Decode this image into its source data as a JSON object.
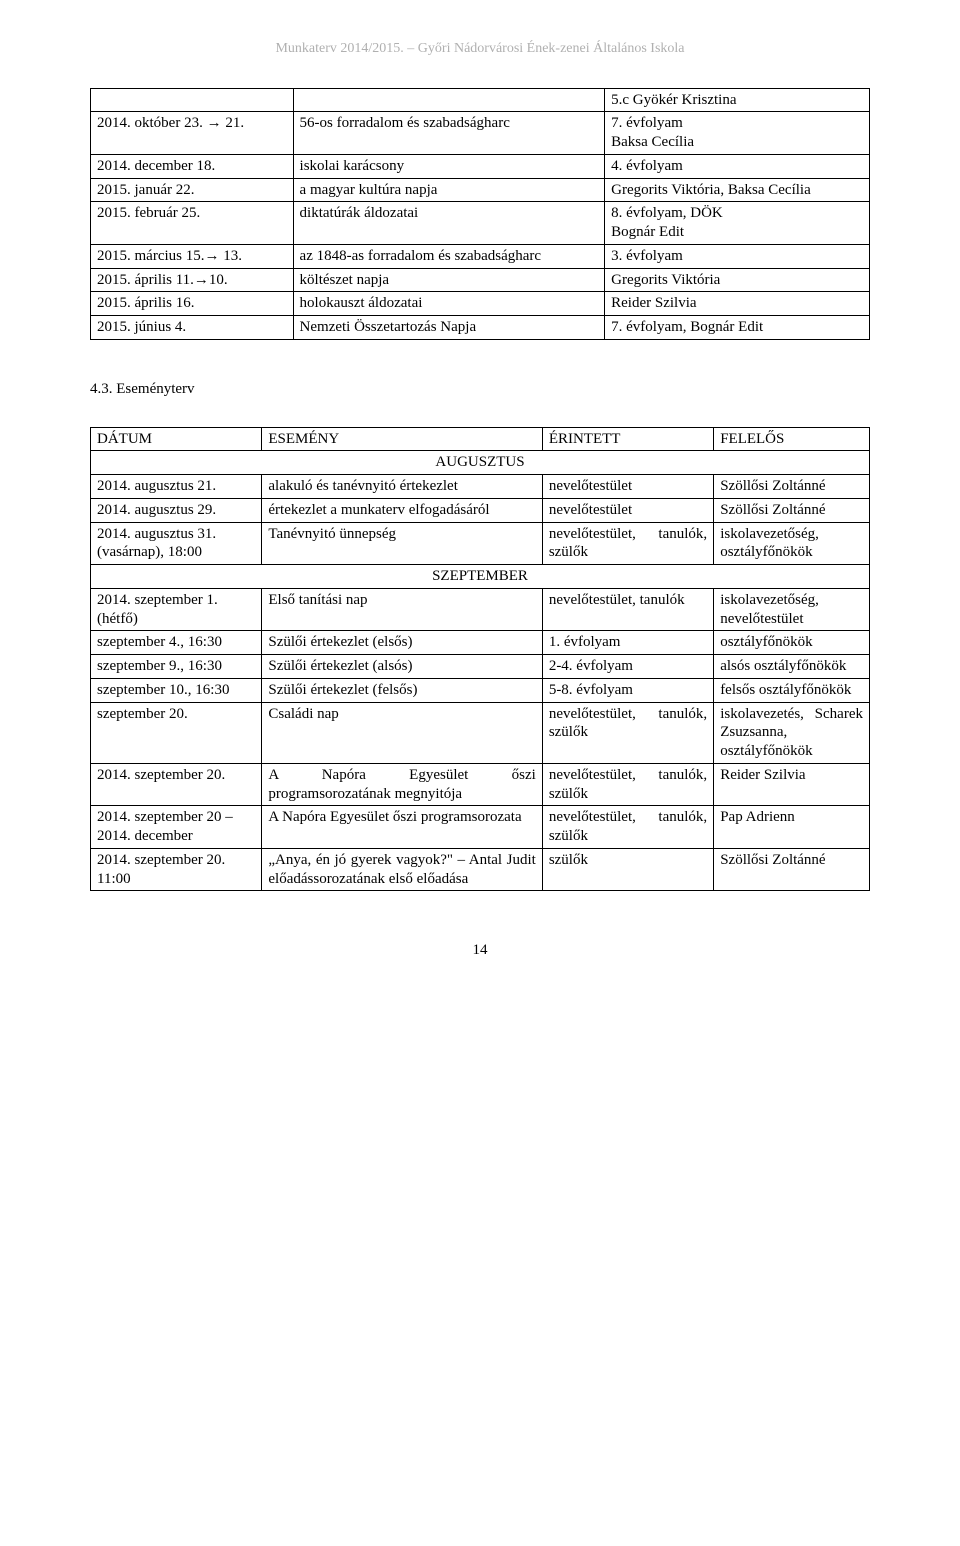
{
  "header": "Munkaterv 2014/2015. – Győri Nádorvárosi Ének-zenei Általános Iskola",
  "section_heading": "4.3. Eseményterv",
  "page_number": "14",
  "table1": {
    "rows": [
      {
        "c1": "",
        "c2": "",
        "c3": "5.c Gyökér Krisztina"
      },
      {
        "c1": "2014. október 23. → 21.",
        "c2": "56-os forradalom és szabadságharc",
        "c3": "7. évfolyam\nBaksa Cecília"
      },
      {
        "c1": "2014. december 18.",
        "c2": "iskolai karácsony",
        "c3": "4. évfolyam"
      },
      {
        "c1": "2015. január 22.",
        "c2": "a magyar kultúra napja",
        "c3": "Gregorits Viktória, Baksa Cecília"
      },
      {
        "c1": "2015. február 25.",
        "c2": "diktatúrák áldozatai",
        "c3": "8. évfolyam, DÖK\nBognár Edit"
      },
      {
        "c1": "2015. március 15.→ 13.",
        "c2": "az 1848-as forradalom és szabadságharc",
        "c3": "3. évfolyam"
      },
      {
        "c1": "2015. április 11.→10.",
        "c2": "költészet napja",
        "c3": "Gregorits Viktória"
      },
      {
        "c1": "2015. április 16.",
        "c2": "holokauszt áldozatai",
        "c3": "Reider Szilvia"
      },
      {
        "c1": "2015. június 4.",
        "c2": "Nemzeti Összetartozás Napja",
        "c3": "7. évfolyam, Bognár Edit"
      }
    ]
  },
  "table2": {
    "head": {
      "c1": "DÁTUM",
      "c2": "ESEMÉNY",
      "c3": "ÉRINTETT",
      "c4": "FELELŐS"
    },
    "month1": "AUGUSZTUS",
    "month2": "SZEPTEMBER",
    "aug": [
      {
        "c1": "2014. augusztus 21.",
        "c2": "alakuló és tanévnyitó értekezlet",
        "c3": "nevelőtestület",
        "c4": "Szöllősi Zoltánné"
      },
      {
        "c1": "2014. augusztus 29.",
        "c2": "értekezlet a munkaterv elfogadásáról",
        "c3": "nevelőtestület",
        "c4": "Szöllősi Zoltánné"
      },
      {
        "c1": "2014. augusztus 31. (vasárnap), 18:00",
        "c2": "Tanévnyitó ünnepség",
        "c3": "nevelőtestület, tanulók, szülők",
        "c4": "iskolavezetőség, osztályfőnökök"
      }
    ],
    "sep": [
      {
        "c1": "2014. szeptember 1. (hétfő)",
        "c2": "Első tanítási nap",
        "c3": "nevelőtestület, tanulók",
        "c4": "iskolavezetőség, nevelőtestület"
      },
      {
        "c1": "szeptember 4., 16:30",
        "c2": "Szülői értekezlet (elsős)",
        "c3": "1. évfolyam",
        "c4": "osztályfőnökök"
      },
      {
        "c1": "szeptember 9., 16:30",
        "c2": "Szülői értekezlet (alsós)",
        "c3": "2-4. évfolyam",
        "c4": "alsós osztályfőnökök"
      },
      {
        "c1": "szeptember 10., 16:30",
        "c2": "Szülői értekezlet (felsős)",
        "c3": "5-8. évfolyam",
        "c4": "felsős osztályfőnökök"
      },
      {
        "c1": "szeptember 20.",
        "c2": "Családi nap",
        "c3": "nevelőtestület, tanulók, szülők",
        "c4": "iskolavezetés, Scharek Zsuzsanna, osztályfőnökök"
      },
      {
        "c1": "2014. szeptember 20.",
        "c2": "A Napóra Egyesület őszi programsorozatának megnyitója",
        "c3": "nevelőtestület, tanulók, szülők",
        "c4": "Reider Szilvia"
      },
      {
        "c1": "2014. szeptember 20 – 2014. december",
        "c2": "A Napóra Egyesület őszi programsorozata",
        "c3": "nevelőtestület, tanulók, szülők",
        "c4": "Pap Adrienn"
      },
      {
        "c1": "2014. szeptember 20. 11:00",
        "c2": "„Anya, én jó gyerek vagyok?\" – Antal Judit előadássorozatának első előadása",
        "c3": "szülők",
        "c4": "Szöllősi Zoltánné"
      }
    ]
  }
}
